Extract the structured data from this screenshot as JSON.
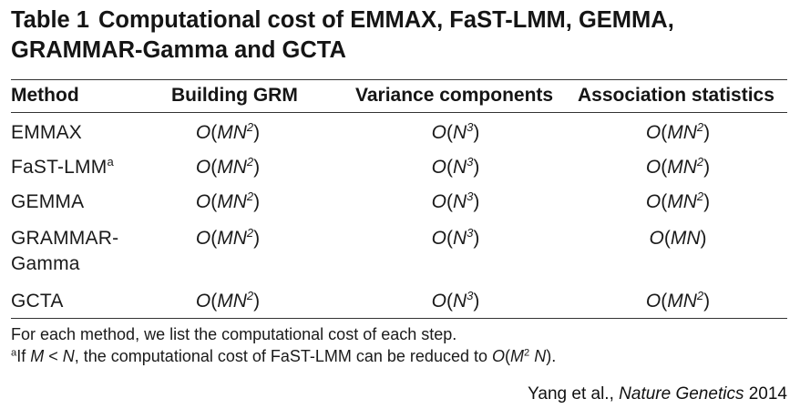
{
  "table": {
    "number": "Table 1",
    "title": "Computational cost of EMMAX, FaST-LMM, GEMMA, GRAMMAR-Gamma and GCTA",
    "headers": [
      "Method",
      "Building GRM",
      "Variance components",
      "Association statistics"
    ],
    "rows": [
      {
        "method": "EMMAX",
        "method_sup": "",
        "grm": [
          "MN",
          "2"
        ],
        "vc": [
          "N",
          "3"
        ],
        "assoc": [
          "MN",
          "2"
        ]
      },
      {
        "method": "FaST-LMM",
        "method_sup": "a",
        "grm": [
          "MN",
          "2"
        ],
        "vc": [
          "N",
          "3"
        ],
        "assoc": [
          "MN",
          "2"
        ]
      },
      {
        "method": "GEMMA",
        "method_sup": "",
        "grm": [
          "MN",
          "2"
        ],
        "vc": [
          "N",
          "3"
        ],
        "assoc": [
          "MN",
          "2"
        ]
      },
      {
        "method": "GRAMMAR-Gamma",
        "method_sup": "",
        "grm": [
          "MN",
          "2"
        ],
        "vc": [
          "N",
          "3"
        ],
        "assoc": [
          "MN",
          ""
        ]
      },
      {
        "method": "GCTA",
        "method_sup": "",
        "grm": [
          "MN",
          "2"
        ],
        "vc": [
          "N",
          "3"
        ],
        "assoc": [
          "MN",
          "2"
        ]
      }
    ],
    "footnotes": {
      "general": "For each method, we list the computational cost of each step.",
      "a_marker": "a",
      "a_text_1": "If ",
      "a_cond_M": "M",
      "a_cond_op": " < ",
      "a_cond_N": "N",
      "a_text_2": ", the computational cost of FaST-LMM can be reduced to ",
      "a_expr_O": "O",
      "a_expr_open": "(",
      "a_expr_M": "M",
      "a_expr_exp": "2",
      "a_expr_N": " N",
      "a_expr_close": ")",
      "a_text_3": "."
    }
  },
  "citation": {
    "authors": "Yang et al., ",
    "journal": "Nature Genetics",
    "year": " 2014"
  }
}
